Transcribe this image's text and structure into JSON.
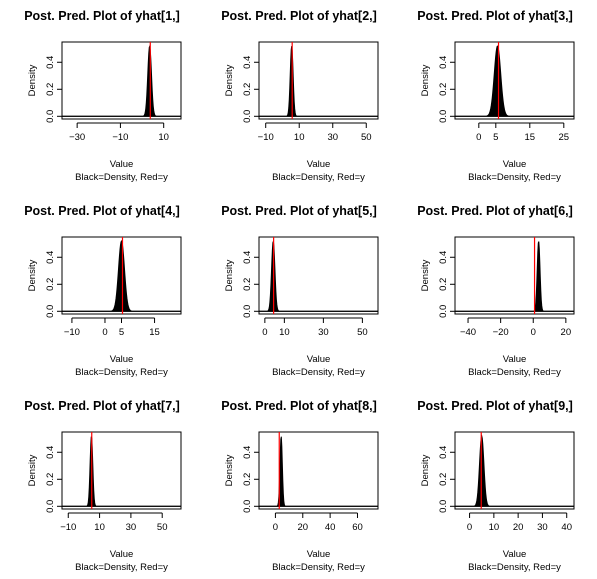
{
  "chart_data": [
    {
      "type": "line",
      "title": "Post. Pred. Plot of yhat[1,]",
      "xlabel": "Value",
      "sublabel": "Black=Density, Red=y",
      "ylabel": "Density",
      "xlim": [
        -37,
        18
      ],
      "ylim": [
        -0.02,
        0.55
      ],
      "xticks": [
        -30,
        -10,
        10
      ],
      "yticks": [
        0.0,
        0.2,
        0.4
      ],
      "peak_x": 3.5,
      "peak_y": 0.52,
      "width": 0.85,
      "observed_y": 3.8,
      "series": [
        {
          "name": "Density",
          "color": "#000000"
        },
        {
          "name": "y",
          "color": "#ff0000"
        }
      ]
    },
    {
      "type": "line",
      "title": "Post. Pred. Plot of yhat[2,]",
      "xlabel": "Value",
      "sublabel": "Black=Density, Red=y",
      "ylabel": "Density",
      "xlim": [
        -14,
        57
      ],
      "ylim": [
        -0.02,
        0.55
      ],
      "xticks": [
        -10,
        10,
        30,
        50
      ],
      "yticks": [
        0.0,
        0.2,
        0.4
      ],
      "peak_x": 5.5,
      "peak_y": 0.52,
      "width": 0.85,
      "observed_y": 5.8,
      "series": [
        {
          "name": "Density",
          "color": "#000000"
        },
        {
          "name": "y",
          "color": "#ff0000"
        }
      ]
    },
    {
      "type": "line",
      "title": "Post. Pred. Plot of yhat[3,]",
      "xlabel": "Value",
      "sublabel": "Black=Density, Red=y",
      "ylabel": "Density",
      "xlim": [
        -7,
        28
      ],
      "ylim": [
        -0.02,
        0.55
      ],
      "xticks": [
        0,
        5,
        15,
        25
      ],
      "yticks": [
        0.0,
        0.2,
        0.4
      ],
      "peak_x": 5.5,
      "peak_y": 0.52,
      "width": 0.95,
      "observed_y": 5.8,
      "series": [
        {
          "name": "Density",
          "color": "#000000"
        },
        {
          "name": "y",
          "color": "#ff0000"
        }
      ]
    },
    {
      "type": "line",
      "title": "Post. Pred. Plot of yhat[4,]",
      "xlabel": "Value",
      "sublabel": "Black=Density, Red=y",
      "ylabel": "Density",
      "xlim": [
        -13,
        23
      ],
      "ylim": [
        -0.02,
        0.55
      ],
      "xticks": [
        -10,
        0,
        5,
        15
      ],
      "yticks": [
        0.0,
        0.2,
        0.4
      ],
      "peak_x": 5.0,
      "peak_y": 0.52,
      "width": 0.9,
      "observed_y": 5.3,
      "series": [
        {
          "name": "Density",
          "color": "#000000"
        },
        {
          "name": "y",
          "color": "#ff0000"
        }
      ]
    },
    {
      "type": "line",
      "title": "Post. Pred. Plot of yhat[5,]",
      "xlabel": "Value",
      "sublabel": "Black=Density, Red=y",
      "ylabel": "Density",
      "xlim": [
        -3,
        58
      ],
      "ylim": [
        -0.02,
        0.55
      ],
      "xticks": [
        0,
        10,
        30,
        50
      ],
      "yticks": [
        0.0,
        0.2,
        0.4
      ],
      "peak_x": 4.3,
      "peak_y": 0.52,
      "width": 0.85,
      "observed_y": 4.5,
      "series": [
        {
          "name": "Density",
          "color": "#000000"
        },
        {
          "name": "y",
          "color": "#ff0000"
        }
      ]
    },
    {
      "type": "line",
      "title": "Post. Pred. Plot of yhat[6,]",
      "xlabel": "Value",
      "sublabel": "Black=Density, Red=y",
      "ylabel": "Density",
      "xlim": [
        -48,
        25
      ],
      "ylim": [
        -0.02,
        0.55
      ],
      "xticks": [
        -40,
        -20,
        0,
        20
      ],
      "yticks": [
        0.0,
        0.2,
        0.4
      ],
      "peak_x": 3.3,
      "peak_y": 0.52,
      "width": 0.85,
      "observed_y": 0.8,
      "series": [
        {
          "name": "Density",
          "color": "#000000"
        },
        {
          "name": "y",
          "color": "#ff0000"
        }
      ]
    },
    {
      "type": "line",
      "title": "Post. Pred. Plot of yhat[7,]",
      "xlabel": "Value",
      "sublabel": "Black=Density, Red=y",
      "ylabel": "Density",
      "xlim": [
        -14,
        62
      ],
      "ylim": [
        -0.02,
        0.55
      ],
      "xticks": [
        -10,
        10,
        30,
        50
      ],
      "yticks": [
        0.0,
        0.2,
        0.4
      ],
      "peak_x": 4.8,
      "peak_y": 0.52,
      "width": 0.85,
      "observed_y": 5.0,
      "series": [
        {
          "name": "Density",
          "color": "#000000"
        },
        {
          "name": "y",
          "color": "#ff0000"
        }
      ]
    },
    {
      "type": "line",
      "title": "Post. Pred. Plot of yhat[8,]",
      "xlabel": "Value",
      "sublabel": "Black=Density, Red=y",
      "ylabel": "Density",
      "xlim": [
        -12,
        75
      ],
      "ylim": [
        -0.02,
        0.55
      ],
      "xticks": [
        0,
        20,
        40,
        60
      ],
      "yticks": [
        0.0,
        0.2,
        0.4
      ],
      "peak_x": 4.2,
      "peak_y": 0.52,
      "width": 0.85,
      "observed_y": 2.8,
      "series": [
        {
          "name": "Density",
          "color": "#000000"
        },
        {
          "name": "y",
          "color": "#ff0000"
        }
      ]
    },
    {
      "type": "line",
      "title": "Post. Pred. Plot of yhat[9,]",
      "xlabel": "Value",
      "sublabel": "Black=Density, Red=y",
      "ylabel": "Density",
      "xlim": [
        -6,
        43
      ],
      "ylim": [
        -0.02,
        0.55
      ],
      "xticks": [
        0,
        10,
        20,
        30,
        40
      ],
      "yticks": [
        0.0,
        0.2,
        0.4
      ],
      "peak_x": 5.0,
      "peak_y": 0.52,
      "width": 0.9,
      "observed_y": 4.8,
      "series": [
        {
          "name": "Density",
          "color": "#000000"
        },
        {
          "name": "y",
          "color": "#ff0000"
        }
      ]
    }
  ]
}
